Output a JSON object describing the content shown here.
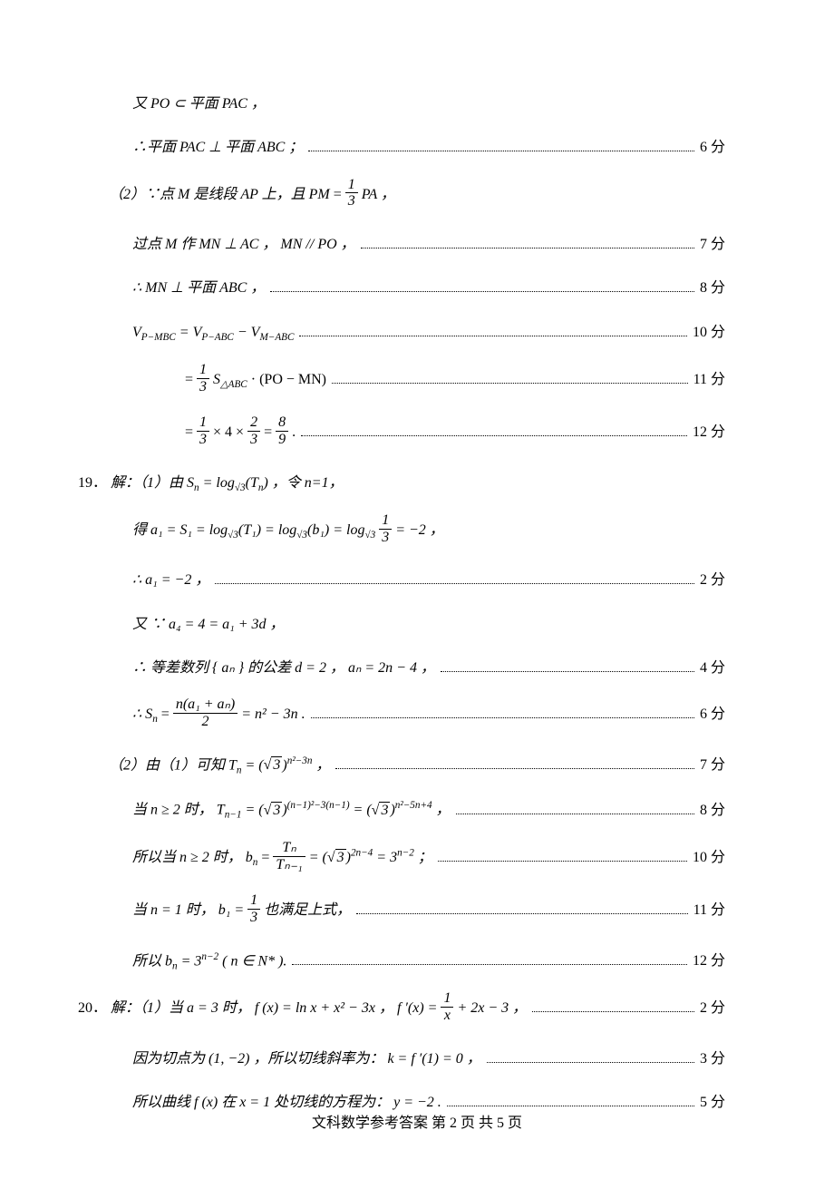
{
  "footer": {
    "text": "文科数学参考答案  第 2 页 共 5 页"
  },
  "lines": {
    "l1": "又 PO ⊂ 平面 PAC ，",
    "l2": "∴平面 PAC ⊥ 平面 ABC ；",
    "l3a": "（2）∵点 M 是线段 AP 上，且 ",
    "l3b": " ，",
    "l4": "过点 M 作 MN ⊥ AC ， MN // PO ，",
    "l5": "∴ MN ⊥ 平面 ABC ，",
    "l6a": "V",
    "l6b": " = V",
    "l6c": " − V",
    "l7a": "= ",
    "l7b": " S",
    "l7c": " · (PO − MN)",
    "l8a": "= ",
    "l8b": " × 4 × ",
    "l8c": " = ",
    "l8d": " .",
    "q19": "19．",
    "l9a": "解：（1）由 S",
    "l9b": " = log",
    "l9c": "(T",
    "l9d": ") ，令 n=1，",
    "l10a": "得 a₁ = S₁ = log",
    "l10b": "(T₁) = log",
    "l10c": "(b₁) = log",
    "l10d": " = −2 ，",
    "l11": "∴ a₁ = −2 ，",
    "l12": "又 ∵ a₄ = 4 = a₁ + 3d ，",
    "l13": "∴ 等差数列 { aₙ } 的公差 d = 2 ， aₙ = 2n − 4 ，",
    "l14a": "∴ S",
    "l14b": " = ",
    "l14num": "n(a₁ + aₙ)",
    "l14den": "2",
    "l14c": " = n² − 3n .",
    "l15a": "（2）由（1）可知 T",
    "l15b": " = (",
    "l15c": ")",
    "l15exp": "n²−3n",
    "l15d": " ，",
    "l16a": "当 n ≥ 2 时， T",
    "l16b": " = (",
    "l16c": ")",
    "l16e1": "(n−1)²−3(n−1)",
    "l16d": " = (",
    "l16e": ")",
    "l16e2": "n²−5n+4",
    "l16f": " ，",
    "l17a": "所以当 n ≥ 2 时， b",
    "l17b": " = ",
    "l17num": "Tₙ",
    "l17den": "Tₙ₋₁",
    "l17c": " = (",
    "l17d": ")",
    "l17e": "2n−4",
    "l17f": " = 3",
    "l17g": "n−2",
    "l17h": " ；",
    "l18a": "当 n = 1 时， b₁ = ",
    "l18b": " 也满足上式，",
    "l19a": "所以 b",
    "l19b": " = 3",
    "l19c": "n−2",
    "l19d": " ( n ∈ N* ).",
    "q20": "20．",
    "l20a": "解：（1）当 a = 3 时， f (x) = ln x + x² − 3x ， f ′(x) = ",
    "l20b": " + 2x − 3 ，",
    "l21": "因为切点为 (1, −2) ，所以切线斜率为： k = f ′(1) = 0 ，",
    "l22": "所以曲线 f (x) 在 x = 1 处切线的方程为： y = −2 ."
  },
  "scores": {
    "s6": "6 分",
    "s7": "7 分",
    "s8": "8 分",
    "s10": "10 分",
    "s11": "11 分",
    "s12": "12 分",
    "s2": "2 分",
    "s4": "4 分",
    "s3": "3 分",
    "s5": "5 分"
  },
  "subs": {
    "pmbc": "P−MBC",
    "pabc": "P−ABC",
    "mabc": "M−ABC",
    "abc": "△ABC",
    "n": "n",
    "nm1": "n−1",
    "sqrt3": "√3"
  },
  "fracs": {
    "onethird": {
      "n": "1",
      "d": "3"
    },
    "twothirds": {
      "n": "2",
      "d": "3"
    },
    "eightninth": {
      "n": "8",
      "d": "9"
    },
    "onex": {
      "n": "1",
      "d": "x"
    }
  }
}
